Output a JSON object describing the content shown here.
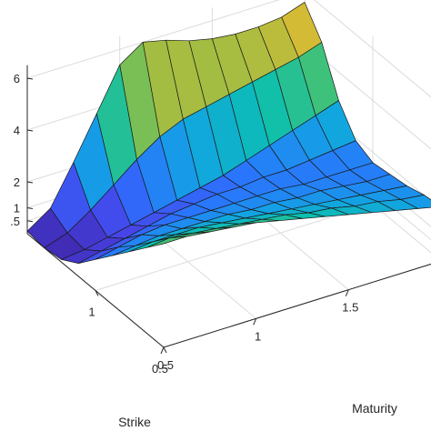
{
  "chart_data": {
    "type": "surface",
    "title": "",
    "xlabel": "Strike",
    "ylabel": "Maturity",
    "zlabel": "",
    "x": [
      0.5,
      0.625,
      0.75,
      0.875,
      1.0,
      1.125,
      1.25,
      1.375,
      1.5
    ],
    "y": [
      0.5,
      0.625,
      0.75,
      0.875,
      1.0,
      1.125,
      1.25,
      1.375,
      1.5,
      1.625,
      1.75,
      1.875,
      2.0
    ],
    "xticks": [
      "0.5",
      "1"
    ],
    "yticks": [
      "0.5",
      "1",
      "1.5"
    ],
    "zticks": [
      ".5",
      "1",
      "2",
      "4",
      "6"
    ],
    "xlim": [
      0.5,
      1.5
    ],
    "ylim": [
      0.5,
      2.0
    ],
    "zlim": [
      0.0,
      6.5
    ],
    "grid": true,
    "colormap": [
      "#3e26a8",
      "#4744e8",
      "#2b73fe",
      "#12a4e2",
      "#0cbfb0",
      "#4ac16d",
      "#a3bd42",
      "#f3ba2d",
      "#f9fb0e"
    ],
    "values": [
      [
        4.0,
        4.0,
        3.9,
        3.8,
        3.7,
        3.5,
        3.3,
        3.1,
        2.9,
        2.7,
        2.5,
        2.3,
        2.1
      ],
      [
        3.3,
        3.4,
        3.3,
        3.2,
        3.1,
        3.0,
        2.9,
        2.7,
        2.6,
        2.4,
        2.3,
        2.1,
        2.0
      ],
      [
        2.6,
        2.7,
        2.7,
        2.7,
        2.6,
        2.5,
        2.4,
        2.3,
        2.2,
        2.1,
        2.0,
        1.9,
        1.8
      ],
      [
        1.9,
        2.0,
        2.1,
        2.1,
        2.1,
        2.1,
        2.0,
        2.0,
        1.9,
        1.9,
        1.8,
        1.7,
        1.7
      ],
      [
        1.2,
        1.4,
        1.6,
        1.7,
        1.7,
        1.7,
        1.7,
        1.7,
        1.7,
        1.6,
        1.6,
        1.6,
        1.6
      ],
      [
        0.5,
        0.7,
        0.9,
        1.1,
        1.3,
        1.4,
        1.5,
        1.5,
        1.6,
        1.6,
        1.7,
        1.8,
        1.9
      ],
      [
        0.1,
        0.2,
        0.4,
        0.6,
        0.8,
        1.0,
        1.2,
        1.4,
        1.7,
        2.0,
        2.3,
        2.6,
        2.9
      ],
      [
        0.0,
        0.3,
        0.9,
        1.6,
        2.3,
        2.9,
        3.3,
        3.5,
        3.7,
        3.9,
        4.1,
        4.3,
        4.6
      ],
      [
        0.1,
        0.7,
        2.2,
        3.8,
        5.4,
        6.0,
        5.8,
        5.5,
        5.3,
        5.2,
        5.2,
        5.3,
        5.6
      ]
    ]
  }
}
